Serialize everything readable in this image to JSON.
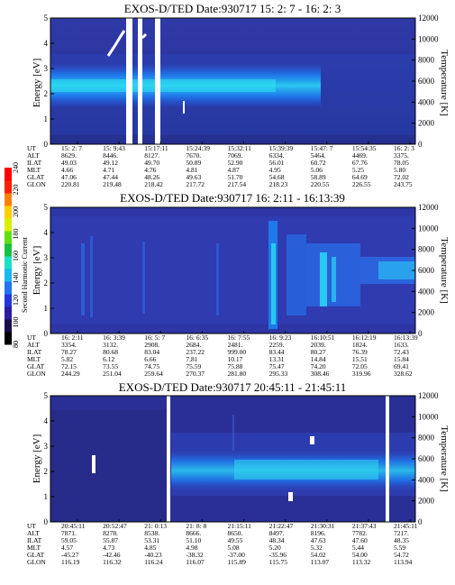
{
  "chart_data": [
    {
      "type": "heatmap",
      "title": "EXOS-D/TED   Date:930717   15: 2: 7 - 16: 2: 3",
      "ylabel": "Energy [eV]",
      "ylabel_right": "Temperature [K]",
      "ylim": [
        0,
        5
      ],
      "ylim_right": [
        0,
        12000
      ],
      "y_ticks": [
        "0",
        "1",
        "2",
        "3",
        "4",
        "5"
      ],
      "y_right_ticks": [
        "0",
        "2000",
        "4000",
        "6000",
        "8000",
        "10000",
        "12000"
      ],
      "table": {
        "labels": [
          "UT",
          "ALT",
          "ILAT",
          "MLT",
          "GLAT",
          "GLON"
        ],
        "columns": [
          [
            "15: 2: 7",
            "8629.",
            "49.03",
            "4.66",
            "47.06",
            "220.81"
          ],
          [
            "15: 9:43",
            "8446.",
            "49.12",
            "4.71",
            "47.44",
            "219.48"
          ],
          [
            "15:17:11",
            "8127.",
            "49.70",
            "4.76",
            "48.26",
            "218.42"
          ],
          [
            "15:24:39",
            "7670.",
            "50.89",
            "4.81",
            "49.63",
            "217.72"
          ],
          [
            "15:32:11",
            "7069.",
            "52.90",
            "4.87",
            "51.70",
            "217.54"
          ],
          [
            "15:39:39",
            "6334.",
            "56.01",
            "4.95",
            "54.68",
            "218.23"
          ],
          [
            "15:47: 7",
            "5464.",
            "60.72",
            "5.06",
            "58.89",
            "220.55"
          ],
          [
            "15:54:35",
            "4469.",
            "67.76",
            "5.25",
            "64.69",
            "226.55"
          ],
          [
            "16: 2: 3",
            "3375.",
            "78.05",
            "5.80",
            "72.02",
            "243.75"
          ]
        ]
      }
    },
    {
      "type": "heatmap",
      "title": "EXOS-D/TED   Date:930717   16: 2:11 - 16:13:39",
      "ylabel": "Energy [eV]",
      "ylabel_right": "Temperature [K]",
      "ylim": [
        0,
        5
      ],
      "ylim_right": [
        0,
        12000
      ],
      "y_ticks": [
        "0",
        "1",
        "2",
        "3",
        "4",
        "5"
      ],
      "y_right_ticks": [
        "0",
        "2000",
        "4000",
        "6000",
        "8000",
        "10000",
        "12000"
      ],
      "colorbar": {
        "label": "Second Harmonic Current",
        "ticks": [
          "80",
          "100",
          "120",
          "140",
          "160",
          "180",
          "200",
          "220",
          "240"
        ],
        "colors": [
          "#000000",
          "#1c0d50",
          "#2a1ea0",
          "#2436d8",
          "#1f74f0",
          "#18b8f0",
          "#1ae0c8",
          "#18c040",
          "#60e010",
          "#d8f000",
          "#ffd000",
          "#ff8000",
          "#ff2000",
          "#ff0000"
        ]
      },
      "table": {
        "labels": [
          "UT",
          "ALT",
          "ILAT",
          "MLT",
          "GLAT",
          "GLON"
        ],
        "columns": [
          [
            "16: 2:11",
            "3354.",
            "78.27",
            "5.82",
            "72.15",
            "244.29"
          ],
          [
            "16: 3:39",
            "3132.",
            "80.68",
            "6.12",
            "73.55",
            "251.04"
          ],
          [
            "16: 5: 7",
            "2908.",
            "83.04",
            "6.66",
            "74.75",
            "259.64"
          ],
          [
            "16: 6:35",
            "2684.",
            "237.22",
            "7.81",
            "75.59",
            "270.37"
          ],
          [
            "16: 7:55",
            "2481.",
            "999.00",
            "10.17",
            "75.88",
            "281.80"
          ],
          [
            "16: 9:23",
            "2259.",
            "83.44",
            "13.31",
            "75.47",
            "295.33"
          ],
          [
            "16:10:51",
            "2039.",
            "80.27",
            "14.84",
            "74.20",
            "308.46"
          ],
          [
            "16:12:19",
            "1824.",
            "76.39",
            "15.51",
            "72.05",
            "319.96"
          ],
          [
            "16:13:39",
            "1633.",
            "72.43",
            "15.84",
            "69.41",
            "328.62"
          ]
        ]
      }
    },
    {
      "type": "heatmap",
      "title": "EXOS-D/TED   Date:930717   20:45:11 - 21:45:11",
      "ylabel": "Energy [eV]",
      "ylabel_right": "Temperature [K]",
      "ylim": [
        0,
        5
      ],
      "ylim_right": [
        0,
        12000
      ],
      "y_ticks": [
        "0",
        "1",
        "2",
        "3",
        "4",
        "5"
      ],
      "y_right_ticks": [
        "0",
        "2000",
        "4000",
        "6000",
        "8000",
        "10000",
        "12000"
      ],
      "table": {
        "labels": [
          "UT",
          "ALT",
          "ILAT",
          "MLT",
          "GLAT",
          "GLON"
        ],
        "columns": [
          [
            "20:45:11",
            "7871.",
            "59.05",
            "4.57",
            "-45.27",
            "116.19"
          ],
          [
            "20:52:47",
            "8278.",
            "55.87",
            "4.73",
            "-42.46",
            "116.32"
          ],
          [
            "21: 0:13",
            "8538.",
            "53.31",
            "4.85",
            "-40.23",
            "116.24"
          ],
          [
            "21: 8: 8",
            "8666.",
            "51.10",
            "4.98",
            "-38.32",
            "116.07"
          ],
          [
            "21:15:11",
            "8650.",
            "49.55",
            "5.08",
            "-37.00",
            "115.89"
          ],
          [
            "21:22:47",
            "8497.",
            "48.34",
            "5.20",
            "-35.96",
            "115.75"
          ],
          [
            "21:30:31",
            "8196.",
            "47.63",
            "5.32",
            "54.02",
            "113.07"
          ],
          [
            "21:37:43",
            "7782.",
            "47.60",
            "5.44",
            "54.00",
            "113.32"
          ],
          [
            "21:45:11",
            "7217.",
            "48.35",
            "5.59",
            "54.72",
            "113.94"
          ]
        ]
      }
    }
  ]
}
